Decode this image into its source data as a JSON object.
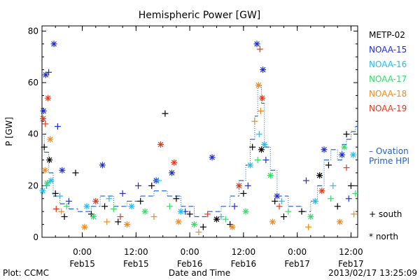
{
  "chart_data": {
    "type": "scatter",
    "title": "Hemispheric Power [GW]",
    "ylabel": "P [GW]",
    "xlabel": "Date and Time",
    "ylim": [
      0,
      82
    ],
    "yticks": [
      0,
      20,
      40,
      60,
      80
    ],
    "xlim": [
      "2013-02-14T15:00",
      "2013-02-17T13:30"
    ],
    "xticks": [
      {
        "t": "2013-02-15T00:00",
        "time": "0:00",
        "date": "Feb15"
      },
      {
        "t": "2013-02-15T12:00",
        "time": "12:00",
        "date": "Feb15"
      },
      {
        "t": "2013-02-16T00:00",
        "time": "0:00",
        "date": "Feb16"
      },
      {
        "t": "2013-02-16T12:00",
        "time": "12:00",
        "date": "Feb16"
      },
      {
        "t": "2013-02-17T00:00",
        "time": "0:00",
        "date": "Feb17"
      },
      {
        "t": "2013-02-17T12:00",
        "time": "12:00",
        "date": "Feb17"
      }
    ],
    "grid": false,
    "legend_position": "right",
    "series": [
      {
        "name": "METP-02",
        "color": "#000000",
        "points": [
          [
            "2013-02-14T15:30",
            35,
            "south"
          ],
          [
            "2013-02-14T16:40",
            30,
            "north"
          ],
          [
            "2013-02-14T18:00",
            17,
            "south"
          ],
          [
            "2013-02-14T20:00",
            8,
            "south"
          ],
          [
            "2013-02-14T22:30",
            25,
            "south"
          ],
          [
            "2013-02-15T02:00",
            9,
            "south"
          ],
          [
            "2013-02-15T05:00",
            12,
            "south"
          ],
          [
            "2013-02-15T08:00",
            6,
            "south"
          ],
          [
            "2013-02-15T13:00",
            14,
            "south"
          ],
          [
            "2013-02-15T15:30",
            20,
            "south"
          ],
          [
            "2013-02-15T18:30",
            48,
            "south"
          ],
          [
            "2013-02-15T21:00",
            15,
            "south"
          ],
          [
            "2013-02-16T00:00",
            9,
            "south"
          ],
          [
            "2013-02-16T03:00",
            4,
            "south"
          ],
          [
            "2013-02-16T06:00",
            7,
            "north"
          ],
          [
            "2013-02-16T09:00",
            5,
            "south"
          ],
          [
            "2013-02-16T12:00",
            17,
            "south"
          ],
          [
            "2013-02-16T14:00",
            35,
            "south"
          ],
          [
            "2013-02-16T16:00",
            34,
            "north"
          ],
          [
            "2013-02-16T19:00",
            14,
            "south"
          ],
          [
            "2013-02-16T21:00",
            8,
            "south"
          ],
          [
            "2013-02-17T01:00",
            10,
            "south"
          ],
          [
            "2013-02-17T05:00",
            24,
            "north"
          ],
          [
            "2013-02-17T07:00",
            28,
            "south"
          ],
          [
            "2013-02-17T09:00",
            12,
            "south"
          ],
          [
            "2013-02-17T11:00",
            40,
            "south"
          ],
          [
            "2013-02-17T12:00",
            20,
            "south"
          ]
        ]
      },
      {
        "name": "NOAA-15",
        "color": "#1f2fcf",
        "points": [
          [
            "2013-02-14T15:20",
            49,
            "north"
          ],
          [
            "2013-02-14T15:50",
            63,
            "north"
          ],
          [
            "2013-02-14T16:30",
            64,
            "south"
          ],
          [
            "2013-02-14T17:40",
            75,
            "north"
          ],
          [
            "2013-02-14T18:30",
            43,
            "south"
          ],
          [
            "2013-02-14T19:30",
            26,
            "north"
          ],
          [
            "2013-02-14T21:00",
            14,
            "south"
          ],
          [
            "2013-02-15T04:30",
            28,
            "north"
          ],
          [
            "2013-02-15T09:00",
            17,
            "south"
          ],
          [
            "2013-02-15T12:30",
            20,
            "south"
          ],
          [
            "2013-02-15T16:30",
            22,
            "north"
          ],
          [
            "2013-02-15T20:00",
            25,
            "north"
          ],
          [
            "2013-02-15T23:00",
            10,
            "south"
          ],
          [
            "2013-02-16T05:00",
            31,
            "north"
          ],
          [
            "2013-02-16T10:00",
            12,
            "south"
          ],
          [
            "2013-02-16T13:00",
            20,
            "south"
          ],
          [
            "2013-02-16T15:00",
            75,
            "north"
          ],
          [
            "2013-02-16T16:20",
            65,
            "north"
          ],
          [
            "2013-02-16T17:00",
            30,
            "south"
          ],
          [
            "2013-02-16T19:30",
            16,
            "north"
          ],
          [
            "2013-02-17T02:00",
            22,
            "south"
          ],
          [
            "2013-02-17T06:00",
            34,
            "north"
          ],
          [
            "2013-02-17T10:00",
            32,
            "north"
          ],
          [
            "2013-02-17T11:30",
            15,
            "south"
          ]
        ]
      },
      {
        "name": "NOAA-16",
        "color": "#22bdf0",
        "points": [
          [
            "2013-02-14T15:10",
            18,
            "north"
          ],
          [
            "2013-02-14T16:00",
            20,
            "south"
          ],
          [
            "2013-02-14T17:00",
            22,
            "north"
          ],
          [
            "2013-02-14T19:00",
            16,
            "south"
          ],
          [
            "2013-02-15T01:00",
            12,
            "north"
          ],
          [
            "2013-02-15T06:00",
            15,
            "south"
          ],
          [
            "2013-02-15T11:00",
            12,
            "north"
          ],
          [
            "2013-02-15T17:00",
            22,
            "south"
          ],
          [
            "2013-02-15T22:00",
            10,
            "north"
          ],
          [
            "2013-02-16T07:00",
            8,
            "south"
          ],
          [
            "2013-02-16T13:30",
            28,
            "north"
          ],
          [
            "2013-02-16T15:30",
            40,
            "south"
          ],
          [
            "2013-02-16T16:40",
            36,
            "north"
          ],
          [
            "2013-02-16T20:30",
            14,
            "south"
          ],
          [
            "2013-02-17T04:00",
            14,
            "north"
          ],
          [
            "2013-02-17T08:00",
            20,
            "south"
          ],
          [
            "2013-02-17T12:30",
            32,
            "north"
          ]
        ]
      },
      {
        "name": "NOAA-17",
        "color": "#33dc66",
        "points": [
          [
            "2013-02-14T16:10",
            21,
            "north"
          ],
          [
            "2013-02-14T20:30",
            12,
            "south"
          ],
          [
            "2013-02-15T02:30",
            8,
            "north"
          ],
          [
            "2013-02-15T07:00",
            11,
            "south"
          ],
          [
            "2013-02-15T14:00",
            10,
            "north"
          ],
          [
            "2013-02-15T19:30",
            12,
            "south"
          ],
          [
            "2013-02-16T01:00",
            5,
            "north"
          ],
          [
            "2013-02-16T08:00",
            7,
            "south"
          ],
          [
            "2013-02-16T12:30",
            10,
            "north"
          ],
          [
            "2013-02-16T15:10",
            30,
            "south"
          ],
          [
            "2013-02-16T18:00",
            24,
            "north"
          ],
          [
            "2013-02-16T22:00",
            10,
            "south"
          ],
          [
            "2013-02-17T03:00",
            8,
            "north"
          ],
          [
            "2013-02-17T07:30",
            15,
            "south"
          ],
          [
            "2013-02-17T10:30",
            35,
            "north"
          ],
          [
            "2013-02-17T13:00",
            17,
            "south"
          ]
        ]
      },
      {
        "name": "NOAA-18",
        "color": "#f08a1c",
        "points": [
          [
            "2013-02-14T15:40",
            26,
            "north"
          ],
          [
            "2013-02-14T16:50",
            38,
            "north"
          ],
          [
            "2013-02-14T19:20",
            10,
            "south"
          ],
          [
            "2013-02-15T00:30",
            4,
            "north"
          ],
          [
            "2013-02-15T05:30",
            6,
            "south"
          ],
          [
            "2013-02-15T10:00",
            5,
            "north"
          ],
          [
            "2013-02-15T16:00",
            8,
            "south"
          ],
          [
            "2013-02-15T21:30",
            6,
            "north"
          ],
          [
            "2013-02-16T02:00",
            2,
            "south"
          ],
          [
            "2013-02-16T09:30",
            4,
            "north"
          ],
          [
            "2013-02-16T14:30",
            45,
            "south"
          ],
          [
            "2013-02-16T15:20",
            59,
            "north"
          ],
          [
            "2013-02-16T15:50",
            49,
            "south"
          ],
          [
            "2013-02-16T18:30",
            6,
            "north"
          ],
          [
            "2013-02-17T02:30",
            4,
            "south"
          ],
          [
            "2013-02-17T09:30",
            6,
            "north"
          ],
          [
            "2013-02-17T12:40",
            9,
            "south"
          ]
        ]
      },
      {
        "name": "NOAA-19",
        "color": "#e03a1c",
        "points": [
          [
            "2013-02-14T15:15",
            46,
            "north"
          ],
          [
            "2013-02-14T15:45",
            44,
            "south"
          ],
          [
            "2013-02-14T16:20",
            54,
            "north"
          ],
          [
            "2013-02-14T18:10",
            11,
            "south"
          ],
          [
            "2013-02-15T03:00",
            14,
            "north"
          ],
          [
            "2013-02-15T08:30",
            8,
            "south"
          ],
          [
            "2013-02-15T17:30",
            36,
            "north"
          ],
          [
            "2013-02-15T20:30",
            29,
            "north"
          ],
          [
            "2013-02-16T04:00",
            9,
            "south"
          ],
          [
            "2013-02-16T11:00",
            20,
            "north"
          ],
          [
            "2013-02-16T15:40",
            73,
            "south"
          ],
          [
            "2013-02-16T16:10",
            54,
            "north"
          ],
          [
            "2013-02-16T20:00",
            12,
            "south"
          ],
          [
            "2013-02-17T05:30",
            18,
            "north"
          ],
          [
            "2013-02-17T11:00",
            27,
            "south"
          ]
        ]
      }
    ],
    "ovation": {
      "name": "Ovation Prime HPI",
      "color": "#1f5fcf",
      "steps": [
        [
          "2013-02-14T15:00",
          40
        ],
        [
          "2013-02-14T15:30",
          33
        ],
        [
          "2013-02-14T16:30",
          25
        ],
        [
          "2013-02-14T17:30",
          16
        ],
        [
          "2013-02-14T19:00",
          13
        ],
        [
          "2013-02-14T21:00",
          11
        ],
        [
          "2013-02-14T23:00",
          10
        ],
        [
          "2013-02-15T02:00",
          12
        ],
        [
          "2013-02-15T04:00",
          16
        ],
        [
          "2013-02-15T07:00",
          12
        ],
        [
          "2013-02-15T10:00",
          14
        ],
        [
          "2013-02-15T13:00",
          16
        ],
        [
          "2013-02-15T16:00",
          18
        ],
        [
          "2013-02-15T19:00",
          16
        ],
        [
          "2013-02-15T22:00",
          12
        ],
        [
          "2013-02-16T01:00",
          8
        ],
        [
          "2013-02-16T04:00",
          10
        ],
        [
          "2013-02-16T07:00",
          12
        ],
        [
          "2013-02-16T09:00",
          16
        ],
        [
          "2013-02-16T11:00",
          22
        ],
        [
          "2013-02-16T12:30",
          28
        ],
        [
          "2013-02-16T13:30",
          38
        ],
        [
          "2013-02-16T14:30",
          47
        ],
        [
          "2013-02-16T15:10",
          59
        ],
        [
          "2013-02-16T16:00",
          52
        ],
        [
          "2013-02-16T16:40",
          35
        ],
        [
          "2013-02-16T18:00",
          26
        ],
        [
          "2013-02-16T19:30",
          16
        ],
        [
          "2013-02-16T22:00",
          12
        ],
        [
          "2013-02-17T01:00",
          10
        ],
        [
          "2013-02-17T03:00",
          14
        ],
        [
          "2013-02-17T04:30",
          20
        ],
        [
          "2013-02-17T06:00",
          30
        ],
        [
          "2013-02-17T07:30",
          34
        ],
        [
          "2013-02-17T09:00",
          30
        ],
        [
          "2013-02-17T10:00",
          36
        ],
        [
          "2013-02-17T11:00",
          38
        ],
        [
          "2013-02-17T12:00",
          41
        ],
        [
          "2013-02-17T13:00",
          43
        ],
        [
          "2013-02-17T13:30",
          43
        ]
      ]
    }
  },
  "labels": {
    "ovation_line1": "– Ovation",
    "ovation_line2": "Prime HPI",
    "south": "+ south",
    "north": "* north",
    "footer_left": "Plot: CCMC",
    "footer_center": "Date and Time",
    "footer_right": "2013/02/17 13:25:09"
  }
}
